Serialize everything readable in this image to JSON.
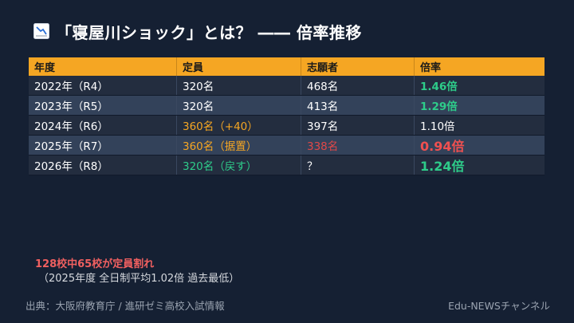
{
  "header": {
    "title": "「寝屋川ショック」とは？ ―― 倍率推移",
    "icon": "chart-down-icon"
  },
  "table": {
    "headers": [
      "年度",
      "定員",
      "志願者",
      "倍率"
    ],
    "rows": [
      {
        "year": "2022年（R4）",
        "capacity": "320名",
        "applicants": "468名",
        "ratio": "1.46倍"
      },
      {
        "year": "2023年（R5）",
        "capacity": "320名",
        "applicants": "413名",
        "ratio": "1.29倍"
      },
      {
        "year": "2024年（R6）",
        "capacity": "360名（+40）",
        "applicants": "397名",
        "ratio": "1.10倍"
      },
      {
        "year": "2025年（R7）",
        "capacity": "360名（据置）",
        "applicants": "338名",
        "ratio": "0.94倍"
      },
      {
        "year": "2026年（R8）",
        "capacity": "320名（戻す）",
        "applicants": "？",
        "ratio": "1.24倍"
      }
    ]
  },
  "note": {
    "line1": "128校中65校が定員割れ",
    "line2": "（2025年度 全日制平均1.02倍 過去最低）"
  },
  "footer": {
    "source": "出典：大阪府教育庁 / 進研ゼミ高校入試情報",
    "channel": "Edu-NEWSチャンネル"
  },
  "colors": {
    "background": "#152033",
    "header_orange": "#f5a623",
    "green": "#2ecc8a",
    "orange": "#f5a623",
    "red": "#f05050"
  }
}
